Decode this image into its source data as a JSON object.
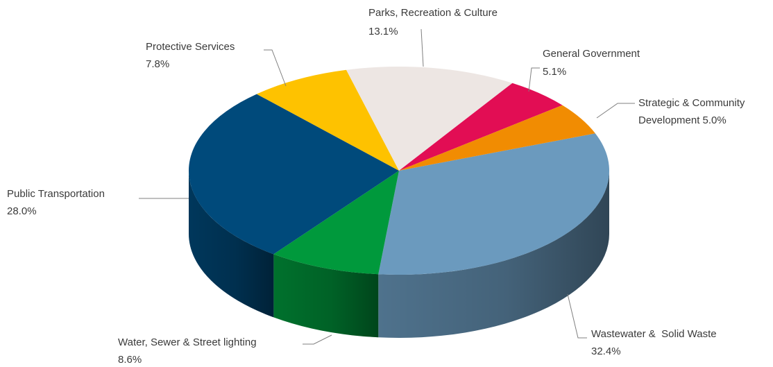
{
  "chart_data": {
    "type": "pie",
    "title": "",
    "slices": [
      {
        "name": "Wastewater &  Solid Waste",
        "value": 32.4,
        "label": "32.4%",
        "color": "#6b9abe"
      },
      {
        "name": "Water, Sewer & Street lighting",
        "value": 8.6,
        "label": "8.6%",
        "color": "#00993c"
      },
      {
        "name": "Public Transportation",
        "value": 28.0,
        "label": "28.0%",
        "color": "#004a7b"
      },
      {
        "name": "Protective Services",
        "value": 7.8,
        "label": "7.8%",
        "color": "#fec200"
      },
      {
        "name": "Parks, Recreation & Culture",
        "value": 13.1,
        "label": "13.1%",
        "color": "#ede6e3"
      },
      {
        "name": "General Government",
        "value": 5.1,
        "label": "5.1%",
        "color": "#e20d54"
      },
      {
        "name": "Strategic & Community Development",
        "value": 5.0,
        "label": "Development 5.0%",
        "label_line1": "Strategic & Community",
        "color": "#f18c02"
      }
    ]
  }
}
